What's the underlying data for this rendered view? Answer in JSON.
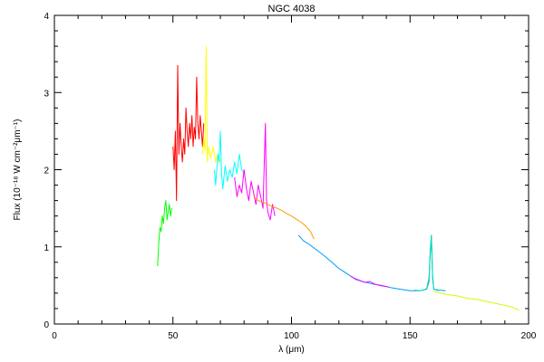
{
  "chart_data": {
    "type": "line",
    "title": "NGC 4038",
    "xlabel": "λ (μm)",
    "ylabel": "Flux (10⁻¹⁸ W cm⁻²μm⁻¹)",
    "xlim": [
      0,
      200
    ],
    "ylim": [
      0,
      4
    ],
    "x_ticks": [
      "0",
      "50",
      "100",
      "150",
      "200"
    ],
    "y_ticks": [
      "0",
      "1",
      "2",
      "3",
      "4"
    ],
    "grid": false,
    "series": [
      {
        "color": "#00ff00",
        "points": [
          [
            43.5,
            0.75
          ],
          [
            44.0,
            1.05
          ],
          [
            44.5,
            1.25
          ],
          [
            45.0,
            1.2
          ],
          [
            45.5,
            1.4
          ],
          [
            46.0,
            1.3
          ],
          [
            46.5,
            1.5
          ],
          [
            47.0,
            1.6
          ],
          [
            47.5,
            1.35
          ],
          [
            48.0,
            1.45
          ],
          [
            48.5,
            1.55
          ],
          [
            49.0,
            1.4
          ],
          [
            49.5,
            1.5
          ]
        ]
      },
      {
        "color": "#ff0000",
        "points": [
          [
            50.0,
            2.3
          ],
          [
            50.5,
            2.0
          ],
          [
            51.0,
            2.5
          ],
          [
            51.5,
            1.6
          ],
          [
            52.0,
            3.35
          ],
          [
            52.5,
            2.2
          ],
          [
            53.0,
            2.6
          ],
          [
            53.5,
            2.3
          ],
          [
            54.0,
            2.1
          ],
          [
            54.5,
            2.4
          ],
          [
            55.0,
            2.2
          ],
          [
            55.5,
            2.8
          ],
          [
            56.0,
            2.5
          ],
          [
            56.5,
            2.3
          ],
          [
            57.0,
            2.6
          ],
          [
            57.5,
            2.4
          ],
          [
            58.0,
            2.7
          ],
          [
            58.5,
            2.3
          ],
          [
            59.0,
            2.55
          ],
          [
            59.5,
            2.4
          ],
          [
            60.0,
            3.2
          ],
          [
            60.5,
            2.6
          ],
          [
            61.0,
            2.4
          ],
          [
            61.5,
            2.7
          ],
          [
            62.0,
            2.5
          ],
          [
            62.5,
            2.3
          ],
          [
            63.0,
            2.6
          ]
        ]
      },
      {
        "color": "#ffff00",
        "points": [
          [
            62.5,
            2.2
          ],
          [
            63.0,
            2.4
          ],
          [
            63.5,
            2.25
          ],
          [
            64.0,
            3.6
          ],
          [
            64.5,
            2.1
          ],
          [
            65.0,
            2.3
          ],
          [
            65.5,
            2.2
          ],
          [
            66.0,
            2.15
          ],
          [
            67.0,
            2.3
          ],
          [
            68.0,
            2.1
          ],
          [
            69.0,
            2.2
          ],
          [
            70.0,
            2.1
          ]
        ]
      },
      {
        "color": "#00ffff",
        "points": [
          [
            67.5,
            2.0
          ],
          [
            68.0,
            1.8
          ],
          [
            69.0,
            2.2
          ],
          [
            69.5,
            2.1
          ],
          [
            70.0,
            2.5
          ],
          [
            70.5,
            1.95
          ],
          [
            71.0,
            1.75
          ],
          [
            72.0,
            2.05
          ],
          [
            73.0,
            1.85
          ],
          [
            74.0,
            2.0
          ],
          [
            75.0,
            1.9
          ],
          [
            76.0,
            2.1
          ],
          [
            77.0,
            1.95
          ],
          [
            78.0,
            2.2
          ],
          [
            79.0,
            2.0
          ],
          [
            80.0,
            1.95
          ]
        ]
      },
      {
        "color": "#ff00ff",
        "points": [
          [
            76.0,
            1.9
          ],
          [
            77.0,
            1.65
          ],
          [
            78.0,
            1.8
          ],
          [
            79.0,
            1.7
          ],
          [
            80.0,
            2.0
          ],
          [
            81.0,
            1.75
          ],
          [
            82.0,
            1.6
          ],
          [
            83.0,
            1.85
          ],
          [
            84.0,
            1.7
          ],
          [
            85.0,
            1.55
          ],
          [
            86.0,
            1.8
          ],
          [
            87.0,
            1.65
          ],
          [
            88.0,
            1.5
          ],
          [
            89.0,
            2.6
          ],
          [
            89.5,
            1.6
          ],
          [
            90.0,
            1.45
          ],
          [
            91.0,
            1.35
          ],
          [
            92.0,
            1.55
          ],
          [
            93.0,
            1.4
          ]
        ]
      },
      {
        "color": "#ff9900",
        "points": [
          [
            84.0,
            1.65
          ],
          [
            86.0,
            1.6
          ],
          [
            88.0,
            1.58
          ],
          [
            90.0,
            1.55
          ],
          [
            92.0,
            1.52
          ],
          [
            94.0,
            1.5
          ],
          [
            96.0,
            1.47
          ],
          [
            98.0,
            1.43
          ],
          [
            100.0,
            1.4
          ],
          [
            102.0,
            1.36
          ],
          [
            104.0,
            1.32
          ],
          [
            106.0,
            1.27
          ],
          [
            108.0,
            1.2
          ],
          [
            109.5,
            1.1
          ]
        ]
      },
      {
        "color": "#0099ff",
        "points": [
          [
            103.0,
            1.15
          ],
          [
            105.0,
            1.08
          ],
          [
            108.0,
            1.02
          ],
          [
            111.0,
            0.95
          ],
          [
            114.0,
            0.88
          ],
          [
            117.0,
            0.8
          ],
          [
            120.0,
            0.72
          ],
          [
            123.0,
            0.66
          ],
          [
            126.0,
            0.6
          ],
          [
            130.0,
            0.55
          ],
          [
            134.0,
            0.52
          ],
          [
            138.0,
            0.5
          ],
          [
            142.0,
            0.47
          ],
          [
            146.0,
            0.45
          ],
          [
            150.0,
            0.43
          ],
          [
            154.0,
            0.43
          ],
          [
            157.0,
            0.45
          ],
          [
            158.0,
            0.55
          ],
          [
            158.5,
            0.9
          ],
          [
            159.0,
            1.15
          ],
          [
            159.5,
            0.6
          ],
          [
            160.0,
            0.45
          ],
          [
            162.0,
            0.44
          ],
          [
            165.0,
            0.43
          ]
        ]
      },
      {
        "color": "#ff00ff",
        "points": [
          [
            125.0,
            0.62
          ],
          [
            127.0,
            0.58
          ],
          [
            129.0,
            0.56
          ],
          [
            131.0,
            0.54
          ],
          [
            133.0,
            0.55
          ],
          [
            135.0,
            0.52
          ],
          [
            137.0,
            0.5
          ],
          [
            139.0,
            0.49
          ],
          [
            141.0,
            0.48
          ]
        ]
      },
      {
        "color": "#00e0b0",
        "points": [
          [
            152.0,
            0.44
          ],
          [
            154.0,
            0.43
          ],
          [
            156.0,
            0.44
          ],
          [
            157.0,
            0.46
          ],
          [
            158.0,
            0.6
          ],
          [
            158.5,
            0.95
          ],
          [
            159.0,
            1.15
          ],
          [
            159.5,
            0.65
          ],
          [
            160.0,
            0.45
          ],
          [
            162.0,
            0.43
          ]
        ]
      },
      {
        "color": "#ccff00",
        "points": [
          [
            160.0,
            0.42
          ],
          [
            163.0,
            0.4
          ],
          [
            166.0,
            0.38
          ],
          [
            169.0,
            0.37
          ],
          [
            172.0,
            0.35
          ],
          [
            175.0,
            0.33
          ],
          [
            178.0,
            0.32
          ],
          [
            181.0,
            0.3
          ],
          [
            184.0,
            0.28
          ],
          [
            187.0,
            0.26
          ],
          [
            190.0,
            0.24
          ],
          [
            193.0,
            0.22
          ],
          [
            196.0,
            0.18
          ]
        ]
      }
    ]
  }
}
